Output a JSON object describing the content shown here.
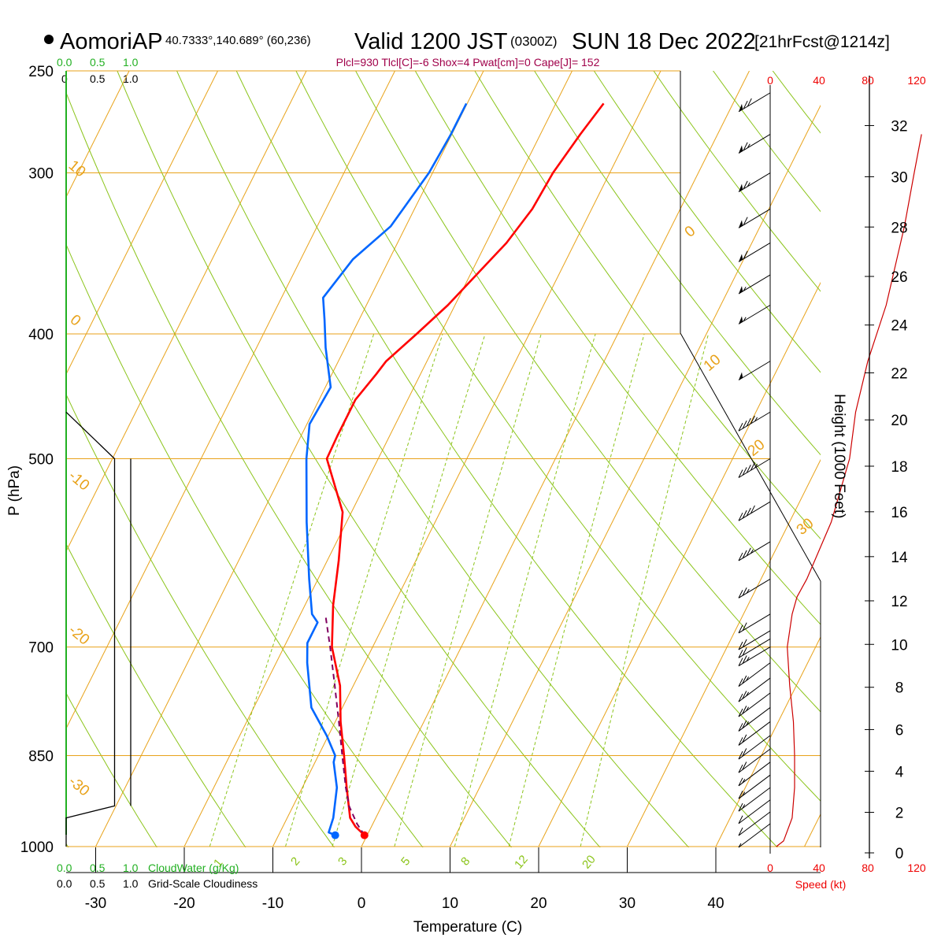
{
  "header": {
    "station": "AomoriAP",
    "coords": "40.7333°,140.689° (60,236)",
    "valid": "Valid 1200 JST",
    "utc": "(0300Z)",
    "date": "SUN 18 Dec 2022",
    "forecast": "[21hrFcst@1214z]",
    "indices": "Plcl=930 Tlcl[C]=-6 Shox=4 Pwat[cm]=0 Cape[J]= 152"
  },
  "labels": {
    "x_title": "Temperature (C)",
    "y_title": "P (hPa)",
    "height_title": "Height (1000 Feet)",
    "cloudwater_title": "CloudWater (g/Kg)",
    "cloudiness_title": "Grid-Scale Cloudiness",
    "speed_title": "Speed (kt)",
    "cloud_ticks": [
      "0.0",
      "0.5",
      "1.0"
    ],
    "cloud_ticks_alt": [
      "0",
      "0.5",
      "1.0"
    ],
    "speed_ticks": [
      "0",
      "40",
      "80",
      "120"
    ]
  },
  "colors": {
    "temperature": "#ff0000",
    "dewpoint": "#0066ff",
    "parcel": "#800060",
    "isobar_isotherm": "#e8a21a",
    "dry_adiabat": "#8bc41a",
    "mixing_ratio": "#8bc41a",
    "cloudwater": "#22b022",
    "speed": "#cc0000",
    "indices": "#a0004a"
  },
  "chart_data": {
    "type": "line",
    "subtype": "skew-T log-P sounding",
    "x_axis": {
      "label": "Temperature (C)",
      "ticks": [
        -30,
        -20,
        -10,
        0,
        10,
        20,
        30,
        40
      ],
      "range": [
        -33.5,
        36
      ]
    },
    "y_axis": {
      "label": "P (hPa)",
      "scale": "log",
      "ticks": [
        250,
        300,
        400,
        500,
        700,
        850,
        1000
      ],
      "range": [
        1000,
        250
      ]
    },
    "isotherm_labels": [
      10,
      0,
      -10,
      -20,
      -30,
      0,
      10,
      20,
      30
    ],
    "mixing_ratio_labels": [
      "1",
      "2",
      "3",
      "5",
      "8",
      "12",
      "20"
    ],
    "series": [
      {
        "name": "Temperature",
        "points": [
          [
            980,
            -0.3
          ],
          [
            965,
            -1.8
          ],
          [
            950,
            -2.9
          ],
          [
            900,
            -5.0
          ],
          [
            850,
            -7.1
          ],
          [
            800,
            -9.4
          ],
          [
            750,
            -11.5
          ],
          [
            700,
            -14.6
          ],
          [
            650,
            -16.8
          ],
          [
            600,
            -18.7
          ],
          [
            550,
            -21.0
          ],
          [
            500,
            -25.8
          ],
          [
            480,
            -25.9
          ],
          [
            460,
            -25.9
          ],
          [
            450,
            -25.9
          ],
          [
            430,
            -25.0
          ],
          [
            420,
            -24.6
          ],
          [
            400,
            -22.7
          ],
          [
            380,
            -20.8
          ],
          [
            360,
            -19.3
          ],
          [
            340,
            -17.7
          ],
          [
            320,
            -16.7
          ],
          [
            300,
            -16.4
          ],
          [
            280,
            -15.5
          ],
          [
            265,
            -14.6
          ]
        ]
      },
      {
        "name": "Dewpoint",
        "points": [
          [
            980,
            -3.6
          ],
          [
            975,
            -4.5
          ],
          [
            950,
            -4.8
          ],
          [
            900,
            -6.1
          ],
          [
            860,
            -7.9
          ],
          [
            850,
            -8.1
          ],
          [
            820,
            -10.2
          ],
          [
            780,
            -13.5
          ],
          [
            720,
            -16.5
          ],
          [
            695,
            -17.6
          ],
          [
            670,
            -17.6
          ],
          [
            660,
            -18.7
          ],
          [
            620,
            -21.0
          ],
          [
            560,
            -24.5
          ],
          [
            500,
            -28.1
          ],
          [
            470,
            -29.7
          ],
          [
            440,
            -29.4
          ],
          [
            410,
            -32.2
          ],
          [
            390,
            -33.9
          ],
          [
            375,
            -35.3
          ],
          [
            350,
            -34.1
          ],
          [
            330,
            -31.7
          ],
          [
            300,
            -30.4
          ],
          [
            280,
            -30.1
          ],
          [
            265,
            -30.1
          ]
        ]
      },
      {
        "name": "Parcel",
        "points": [
          [
            980,
            -0.3
          ],
          [
            960,
            -1.8
          ],
          [
            930,
            -3.7
          ],
          [
            900,
            -5.1
          ],
          [
            850,
            -7.3
          ],
          [
            800,
            -9.6
          ],
          [
            750,
            -12.1
          ],
          [
            700,
            -14.8
          ],
          [
            660,
            -17.2
          ]
        ]
      }
    ],
    "surface_markers": {
      "temperature": -0.3,
      "dewpoint": -3.6
    },
    "cloud_cover": {
      "title": "Grid-Scale Cloudiness",
      "range": [
        0,
        1
      ],
      "points": [
        [
          1000,
          0.0
        ],
        [
          950,
          0.0
        ],
        [
          930,
          0.75
        ],
        [
          500,
          0.75
        ],
        [
          460,
          0.0
        ]
      ]
    },
    "cloud_water": {
      "title": "CloudWater (g/Kg)",
      "range": [
        0,
        1
      ],
      "points": [
        [
          1000,
          0.0
        ],
        [
          250,
          0.0
        ]
      ]
    },
    "wind_profile": {
      "barb_pressures": [
        960,
        940,
        920,
        900,
        880,
        860,
        840,
        820,
        800,
        780,
        760,
        740,
        720,
        700,
        690,
        680,
        660,
        620,
        580,
        540,
        500,
        460,
        420,
        380,
        360,
        340,
        320,
        300,
        280,
        260
      ],
      "barb_speeds_kt": [
        5,
        10,
        10,
        15,
        15,
        15,
        20,
        20,
        20,
        25,
        25,
        25,
        25,
        25,
        20,
        20,
        20,
        25,
        35,
        40,
        45,
        45,
        50,
        55,
        55,
        60,
        60,
        65,
        65,
        70
      ]
    },
    "speed_profile": {
      "axis_label": "Speed (kt)",
      "range": [
        0,
        120
      ],
      "points": [
        [
          1000,
          5
        ],
        [
          990,
          11
        ],
        [
          950,
          18
        ],
        [
          900,
          20
        ],
        [
          850,
          20
        ],
        [
          800,
          19
        ],
        [
          750,
          16
        ],
        [
          700,
          14
        ],
        [
          660,
          18
        ],
        [
          640,
          22
        ],
        [
          620,
          30
        ],
        [
          560,
          50
        ],
        [
          500,
          65
        ],
        [
          460,
          70
        ],
        [
          420,
          80
        ],
        [
          380,
          95
        ],
        [
          330,
          110
        ],
        [
          300,
          118
        ],
        [
          280,
          124
        ]
      ]
    },
    "height_axis": {
      "label": "Height (1000 Feet)",
      "ticks": [
        0,
        2,
        4,
        6,
        8,
        10,
        12,
        14,
        16,
        18,
        20,
        22,
        24,
        26,
        28,
        30,
        32
      ],
      "max": 33.5
    }
  }
}
